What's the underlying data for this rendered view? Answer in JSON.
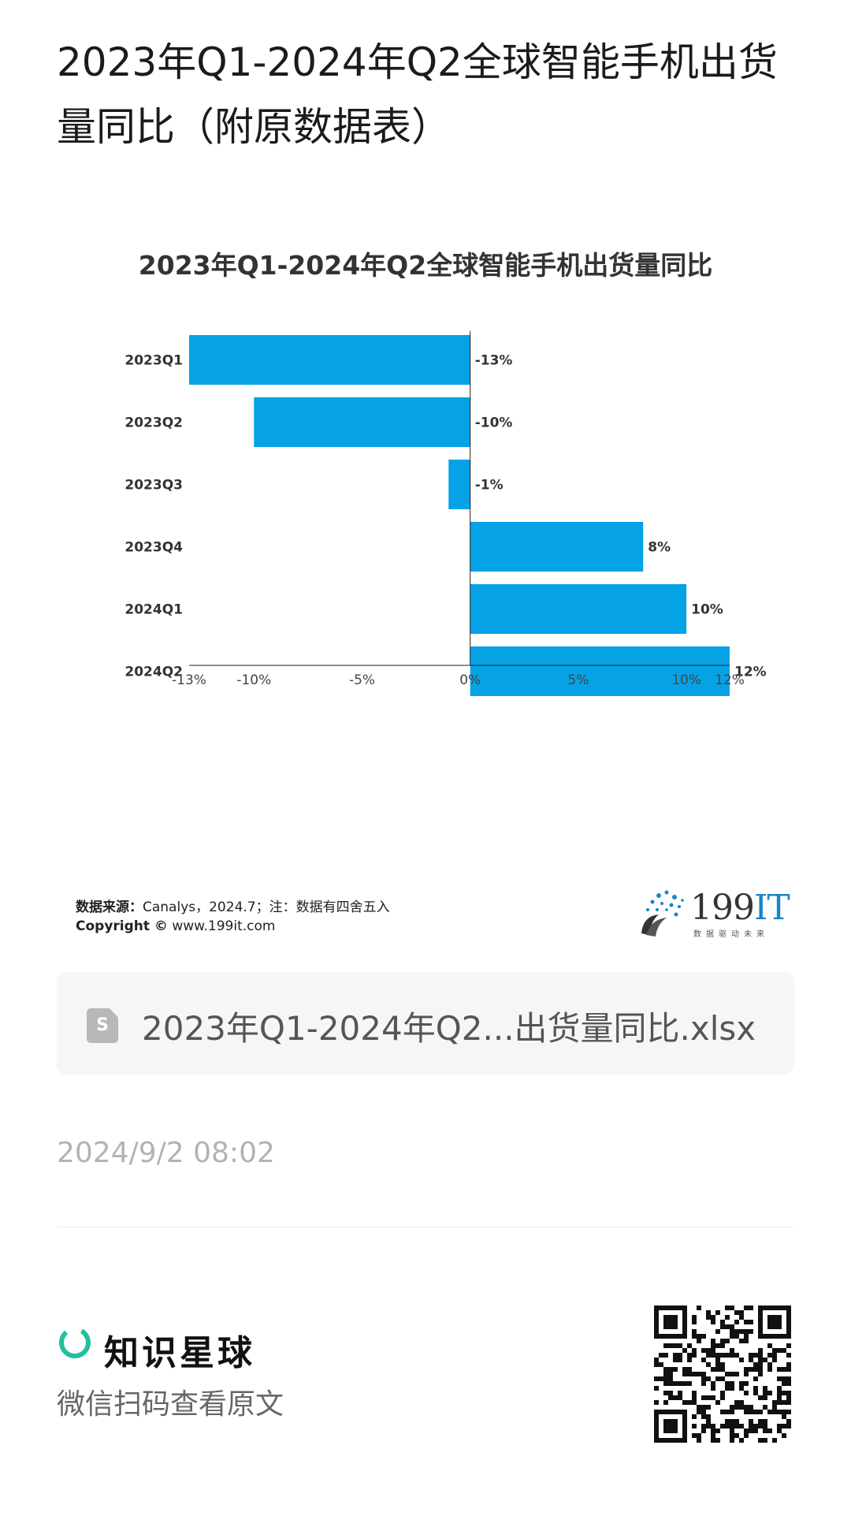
{
  "page": {
    "title": "2023年Q1-2024年Q2全球智能手机出货量同比（附原数据表）",
    "source_label": "数据来源：",
    "source_text": "Canalys，2024.7；注：数据有四舍五入",
    "copyright_label": "Copyright ©",
    "copyright_text": " www.199it.com",
    "logo_text_num": "199",
    "logo_text_it": "IT",
    "logo_slogan": "数据驱动未来",
    "file_name": "2023年Q1-2024年Q2...出货量同比.xlsx",
    "file_icon_letter": "S",
    "timestamp": "2024/9/2 08:02",
    "brand_name": "知识星球",
    "scan_hint": "微信扫码查看原文"
  },
  "colors": {
    "bar": "#05a2e6",
    "axis": "#222222",
    "label": "#333333",
    "brand_green": "#1fbf9f"
  },
  "chart_data": {
    "type": "bar",
    "orientation": "horizontal",
    "title": "2023年Q1-2024年Q2全球智能手机出货量同比",
    "categories": [
      "2023Q1",
      "2023Q2",
      "2023Q3",
      "2023Q4",
      "2024Q1",
      "2024Q2"
    ],
    "values": [
      -13,
      -10,
      -1,
      8,
      10,
      12
    ],
    "data_labels": [
      "-13%",
      "-10%",
      "-1%",
      "8%",
      "10%",
      "12%"
    ],
    "xlim": [
      -13,
      12
    ],
    "x_ticks": [
      -13,
      -10,
      -5,
      0,
      5,
      10,
      12
    ],
    "x_tick_labels": [
      "-13%",
      "-10%",
      "-5%",
      "0%",
      "5%",
      "10%",
      "12%"
    ],
    "xlabel": "",
    "ylabel": "",
    "grid": false,
    "legend": "none"
  }
}
